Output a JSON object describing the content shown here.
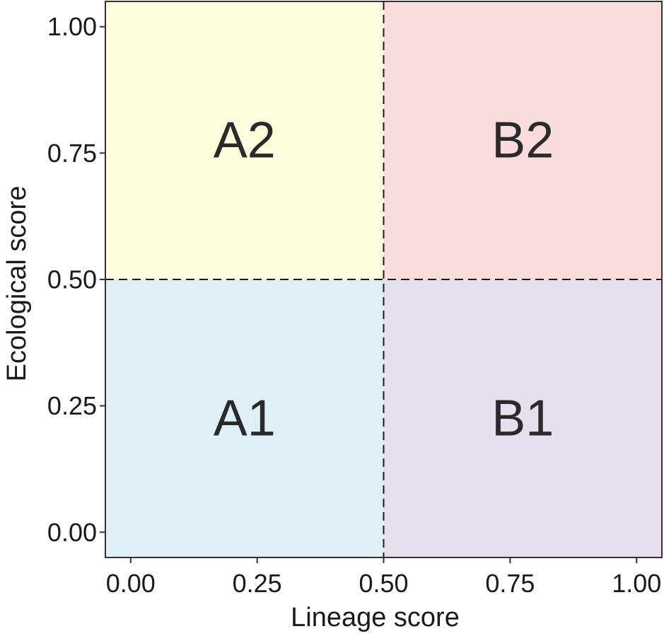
{
  "chart_data": {
    "type": "heatmap",
    "title": "",
    "xlabel": "Lineage score",
    "ylabel": "Ecological score",
    "xlim": [
      -0.05,
      1.05
    ],
    "ylim": [
      -0.05,
      1.05
    ],
    "x_ticks": [
      0,
      0.25,
      0.5,
      0.75,
      1
    ],
    "x_tick_labels": [
      "0.00",
      "0.25",
      "0.50",
      "0.75",
      "1.00"
    ],
    "y_ticks": [
      0,
      0.25,
      0.5,
      0.75,
      1
    ],
    "y_tick_labels": [
      "0.00",
      "0.25",
      "0.50",
      "0.75",
      "1.00"
    ],
    "grid": false,
    "threshold_lines": {
      "x": 0.5,
      "y": 0.5,
      "style": "dashed"
    },
    "quadrants": [
      {
        "label": "A1",
        "x_range": [
          -0.05,
          0.5
        ],
        "y_range": [
          -0.05,
          0.5
        ],
        "color": "#dff0f7"
      },
      {
        "label": "A2",
        "x_range": [
          -0.05,
          0.5
        ],
        "y_range": [
          0.5,
          1.05
        ],
        "color": "#fdfcdd"
      },
      {
        "label": "B1",
        "x_range": [
          0.5,
          1.05
        ],
        "y_range": [
          -0.05,
          0.5
        ],
        "color": "#e7dfed"
      },
      {
        "label": "B2",
        "x_range": [
          0.5,
          1.05
        ],
        "y_range": [
          0.5,
          1.05
        ],
        "color": "#fbdcdd"
      }
    ],
    "quadrant_label_positions": [
      {
        "label": "A1",
        "x": 0.225,
        "y": 0.225
      },
      {
        "label": "A2",
        "x": 0.225,
        "y": 0.775
      },
      {
        "label": "B1",
        "x": 0.775,
        "y": 0.225
      },
      {
        "label": "B2",
        "x": 0.775,
        "y": 0.775
      }
    ]
  }
}
